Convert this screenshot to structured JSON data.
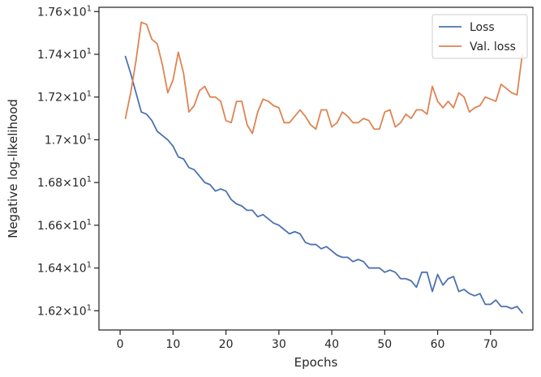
{
  "chart_data": {
    "type": "line",
    "xlabel": "Epochs",
    "ylabel": "Negative log-likelihood",
    "xlim": [
      -4,
      78
    ],
    "ylim": [
      16.11,
      17.62
    ],
    "x_ticks": [
      0,
      10,
      20,
      30,
      40,
      50,
      60,
      70
    ],
    "y_ticks": [
      {
        "value": 16.2,
        "mantissa": "1.62",
        "base": "10",
        "exp": "1"
      },
      {
        "value": 16.4,
        "mantissa": "1.64",
        "base": "10",
        "exp": "1"
      },
      {
        "value": 16.6,
        "mantissa": "1.66",
        "base": "10",
        "exp": "1"
      },
      {
        "value": 16.8,
        "mantissa": "1.68",
        "base": "10",
        "exp": "1"
      },
      {
        "value": 17.0,
        "mantissa": "1.7",
        "base": "10",
        "exp": "1"
      },
      {
        "value": 17.2,
        "mantissa": "1.72",
        "base": "10",
        "exp": "1"
      },
      {
        "value": 17.4,
        "mantissa": "1.74",
        "base": "10",
        "exp": "1"
      },
      {
        "value": 17.6,
        "mantissa": "1.76",
        "base": "10",
        "exp": "1"
      }
    ],
    "legend_position": "top-right",
    "x": [
      1,
      2,
      3,
      4,
      5,
      6,
      7,
      8,
      9,
      10,
      11,
      12,
      13,
      14,
      15,
      16,
      17,
      18,
      19,
      20,
      21,
      22,
      23,
      24,
      25,
      26,
      27,
      28,
      29,
      30,
      31,
      32,
      33,
      34,
      35,
      36,
      37,
      38,
      39,
      40,
      41,
      42,
      43,
      44,
      45,
      46,
      47,
      48,
      49,
      50,
      51,
      52,
      53,
      54,
      55,
      56,
      57,
      58,
      59,
      60,
      61,
      62,
      63,
      64,
      65,
      66,
      67,
      68,
      69,
      70,
      71,
      72,
      73,
      74,
      75,
      76
    ],
    "series": [
      {
        "name": "Loss",
        "color": "#4c72b0",
        "values": [
          17.39,
          17.31,
          17.22,
          17.13,
          17.12,
          17.09,
          17.04,
          17.02,
          17.0,
          16.97,
          16.92,
          16.91,
          16.87,
          16.86,
          16.83,
          16.8,
          16.79,
          16.76,
          16.77,
          16.76,
          16.72,
          16.7,
          16.69,
          16.67,
          16.67,
          16.64,
          16.65,
          16.63,
          16.61,
          16.6,
          16.58,
          16.56,
          16.57,
          16.56,
          16.52,
          16.51,
          16.51,
          16.49,
          16.5,
          16.48,
          16.46,
          16.45,
          16.45,
          16.43,
          16.44,
          16.43,
          16.4,
          16.4,
          16.4,
          16.38,
          16.39,
          16.38,
          16.35,
          16.35,
          16.34,
          16.31,
          16.38,
          16.38,
          16.29,
          16.37,
          16.32,
          16.35,
          16.36,
          16.29,
          16.3,
          16.28,
          16.27,
          16.28,
          16.23,
          16.23,
          16.25,
          16.22,
          16.22,
          16.21,
          16.22,
          16.19
        ]
      },
      {
        "name": "Val. loss",
        "color": "#dd8452",
        "values": [
          17.1,
          17.22,
          17.37,
          17.55,
          17.54,
          17.47,
          17.45,
          17.35,
          17.22,
          17.28,
          17.41,
          17.31,
          17.13,
          17.16,
          17.23,
          17.25,
          17.2,
          17.2,
          17.18,
          17.09,
          17.08,
          17.18,
          17.18,
          17.07,
          17.03,
          17.13,
          17.19,
          17.18,
          17.16,
          17.15,
          17.08,
          17.08,
          17.11,
          17.14,
          17.11,
          17.07,
          17.05,
          17.14,
          17.14,
          17.06,
          17.08,
          17.13,
          17.11,
          17.08,
          17.08,
          17.1,
          17.09,
          17.05,
          17.05,
          17.13,
          17.14,
          17.06,
          17.08,
          17.12,
          17.1,
          17.14,
          17.14,
          17.12,
          17.25,
          17.18,
          17.15,
          17.18,
          17.15,
          17.22,
          17.2,
          17.13,
          17.15,
          17.16,
          17.2,
          17.19,
          17.18,
          17.26,
          17.24,
          17.22,
          17.21,
          17.4
        ]
      }
    ]
  }
}
